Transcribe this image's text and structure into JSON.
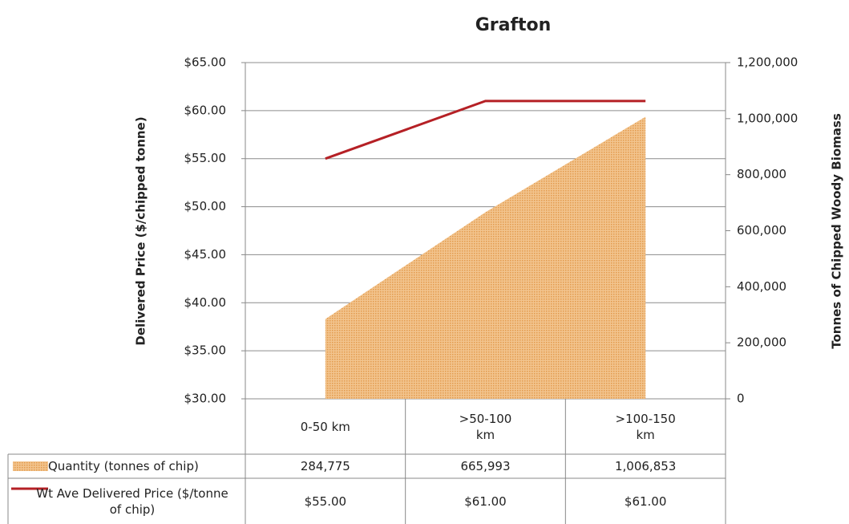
{
  "chart_data": {
    "type": "combo",
    "title": "Grafton",
    "y_label": "Delivered Price ($/chipped tonne)",
    "y2_label": "Tonnes of Chipped Woody Biomass",
    "categories": [
      "0-50 km",
      ">50-100 km",
      ">100-150 km"
    ],
    "ylim": [
      30,
      65
    ],
    "yticks": [
      {
        "value": 30,
        "label": "$30.00"
      },
      {
        "value": 35,
        "label": "$35.00"
      },
      {
        "value": 40,
        "label": "$40.00"
      },
      {
        "value": 45,
        "label": "$45.00"
      },
      {
        "value": 50,
        "label": "$50.00"
      },
      {
        "value": 55,
        "label": "$55.00"
      },
      {
        "value": 60,
        "label": "$60.00"
      },
      {
        "value": 65,
        "label": "$65.00"
      }
    ],
    "y2lim": [
      0,
      1200000
    ],
    "y2ticks": [
      0,
      {
        "value": 200000,
        "label": "200,000"
      },
      {
        "value": 400000,
        "label": "400,000"
      },
      {
        "value": 600000,
        "label": "600,000"
      },
      {
        "value": 800000,
        "label": "800,000"
      },
      {
        "value": 1000000,
        "label": "1,000,000"
      },
      {
        "value": 1200000,
        "label": "1,200,000"
      }
    ],
    "grid": true,
    "series": [
      {
        "name": "Quantity (tonnes of chip)",
        "type": "area",
        "axis": "y2",
        "color": "#e8a85c",
        "values": [
          284775,
          665993,
          1006853
        ],
        "value_labels": [
          "284,775",
          "665,993",
          "1,006,853"
        ]
      },
      {
        "name": "Wt Ave Delivered Price ($/tonne of chip)",
        "type": "line",
        "axis": "y",
        "color": "#b52025",
        "values": [
          55,
          61,
          61
        ],
        "value_labels": [
          "$55.00",
          "$61.00",
          "$61.00"
        ]
      }
    ]
  }
}
